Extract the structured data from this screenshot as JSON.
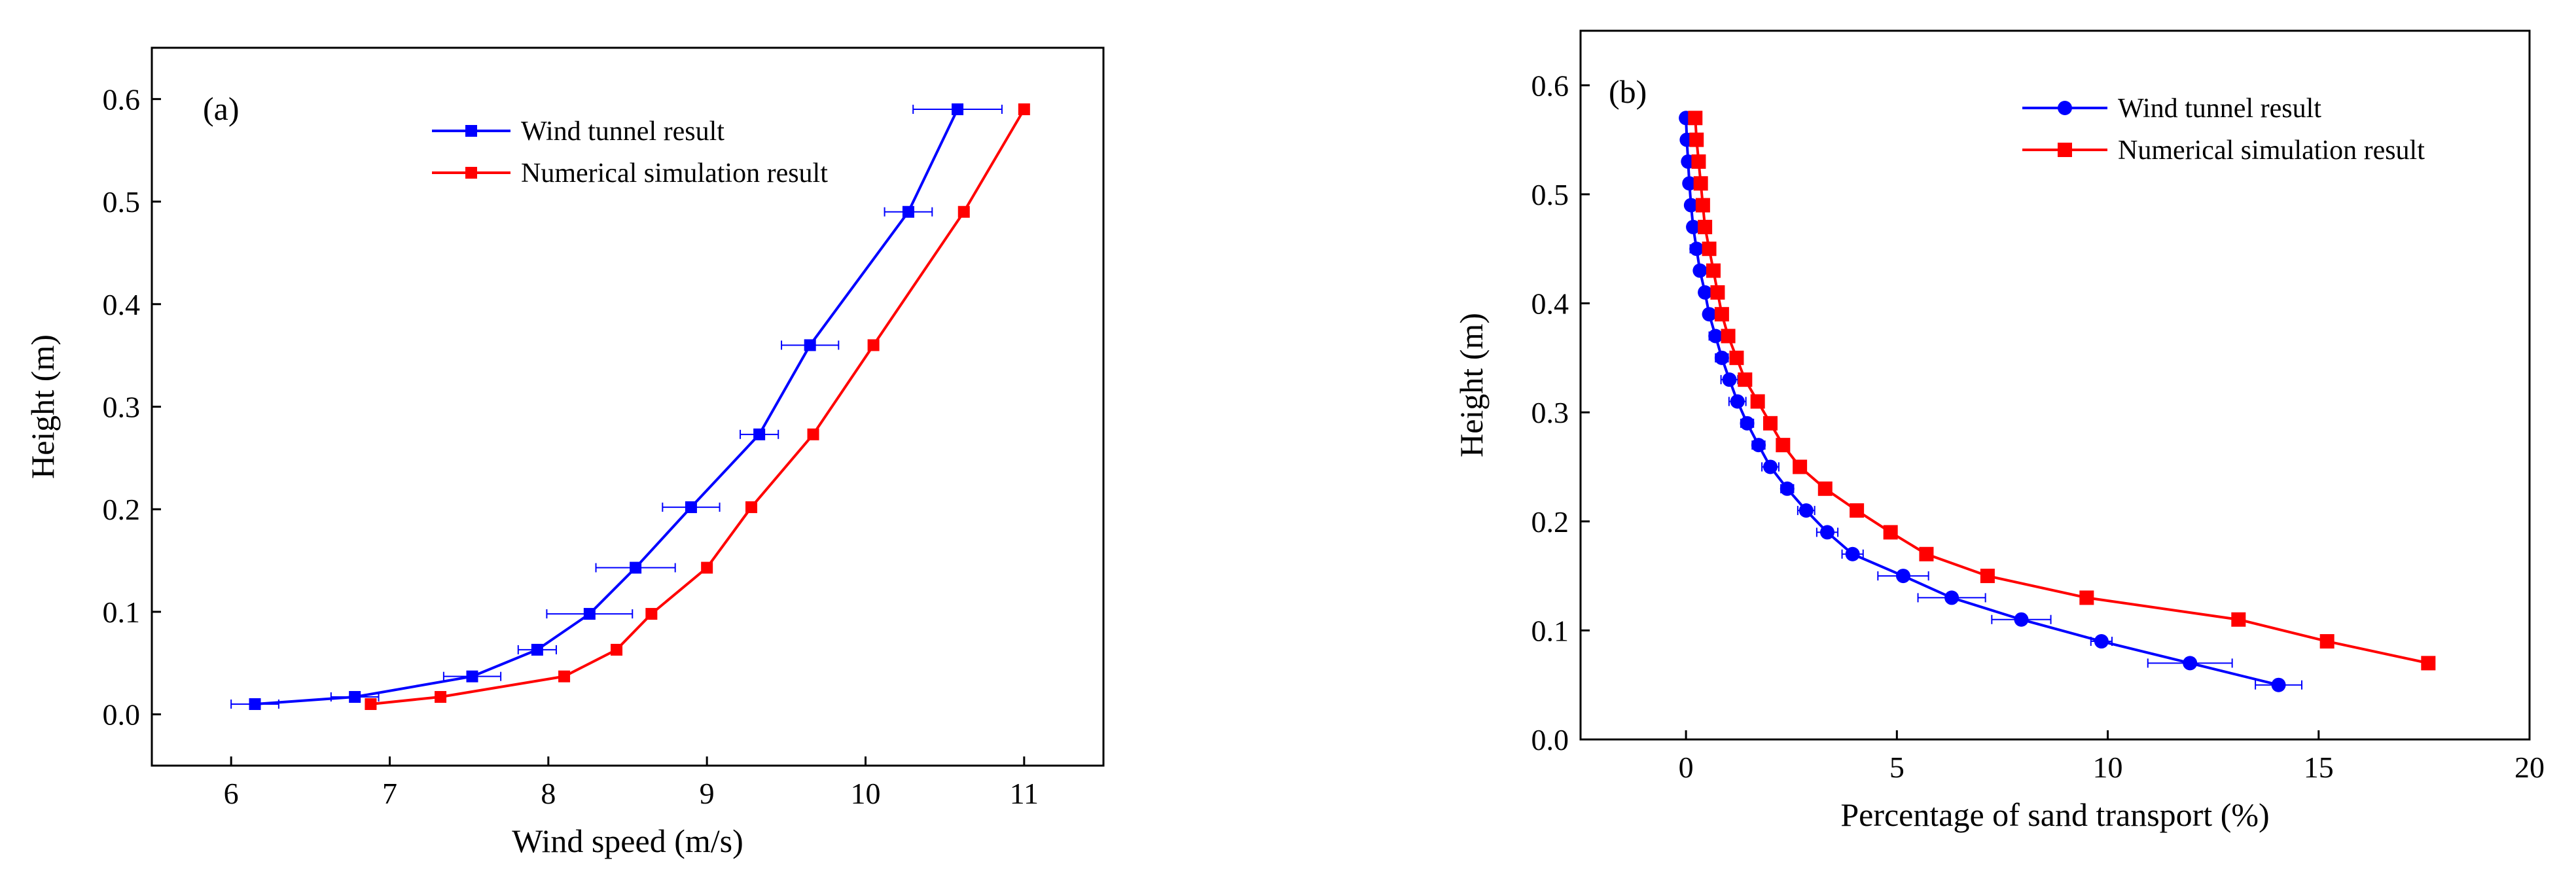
{
  "chart_data": [
    {
      "type": "line",
      "panel_label": "(a)",
      "xlabel": "Wind speed (m/s)",
      "ylabel": "Height (m)",
      "xlim": [
        5.5,
        11.5
      ],
      "ylim": [
        -0.05,
        0.65
      ],
      "xticks": [
        6,
        7,
        8,
        9,
        10,
        11
      ],
      "yticks": [
        0.0,
        0.1,
        0.2,
        0.3,
        0.4,
        0.5,
        0.6
      ],
      "xtick_labels": [
        "6",
        "7",
        "8",
        "9",
        "10",
        "11"
      ],
      "ytick_labels": [
        "0.0",
        "0.1",
        "0.2",
        "0.3",
        "0.4",
        "0.5",
        "0.6"
      ],
      "legend_position": "top-center",
      "series": [
        {
          "name": "Wind tunnel result",
          "color": "#0000ff",
          "marker": "square",
          "points": [
            {
              "x": 6.15,
              "y": 0.01,
              "err": 0.15
            },
            {
              "x": 6.78,
              "y": 0.017,
              "err": 0.15
            },
            {
              "x": 7.52,
              "y": 0.037,
              "err": 0.18
            },
            {
              "x": 7.93,
              "y": 0.063,
              "err": 0.12
            },
            {
              "x": 8.26,
              "y": 0.098,
              "err": 0.27
            },
            {
              "x": 8.55,
              "y": 0.143,
              "err": 0.25
            },
            {
              "x": 8.9,
              "y": 0.202,
              "err": 0.18
            },
            {
              "x": 9.33,
              "y": 0.273,
              "err": 0.12
            },
            {
              "x": 9.65,
              "y": 0.36,
              "err": 0.18
            },
            {
              "x": 10.27,
              "y": 0.49,
              "err": 0.15
            },
            {
              "x": 10.58,
              "y": 0.59,
              "err": 0.28
            }
          ]
        },
        {
          "name": "Numerical simulation result",
          "color": "#ff0000",
          "marker": "square",
          "points": [
            {
              "x": 6.88,
              "y": 0.01
            },
            {
              "x": 7.32,
              "y": 0.017
            },
            {
              "x": 8.1,
              "y": 0.037
            },
            {
              "x": 8.43,
              "y": 0.063
            },
            {
              "x": 8.65,
              "y": 0.098
            },
            {
              "x": 9.0,
              "y": 0.143
            },
            {
              "x": 9.28,
              "y": 0.202
            },
            {
              "x": 9.67,
              "y": 0.273
            },
            {
              "x": 10.05,
              "y": 0.36
            },
            {
              "x": 10.62,
              "y": 0.49
            },
            {
              "x": 11.0,
              "y": 0.59
            }
          ]
        }
      ]
    },
    {
      "type": "line",
      "panel_label": "(b)",
      "xlabel": "Percentage of sand transport (%)",
      "ylabel": "Height (m)",
      "xlim": [
        -2.5,
        20
      ],
      "ylim": [
        0.0,
        0.65
      ],
      "xticks": [
        0,
        5,
        10,
        15,
        20
      ],
      "yticks": [
        0.0,
        0.1,
        0.2,
        0.3,
        0.4,
        0.5,
        0.6
      ],
      "xtick_labels": [
        "0",
        "5",
        "10",
        "15",
        "20"
      ],
      "ytick_labels": [
        "0.0",
        "0.1",
        "0.2",
        "0.3",
        "0.4",
        "0.5",
        "0.6"
      ],
      "legend_position": "top-right",
      "series": [
        {
          "name": "Wind tunnel result",
          "color": "#0000ff",
          "marker": "circle",
          "points": [
            {
              "x": 0.0,
              "y": 0.57,
              "err": 0.1
            },
            {
              "x": 0.02,
              "y": 0.55,
              "err": 0.1
            },
            {
              "x": 0.05,
              "y": 0.53,
              "err": 0.1
            },
            {
              "x": 0.08,
              "y": 0.51,
              "err": 0.1
            },
            {
              "x": 0.12,
              "y": 0.49,
              "err": 0.1
            },
            {
              "x": 0.17,
              "y": 0.47,
              "err": 0.1
            },
            {
              "x": 0.25,
              "y": 0.45,
              "err": 0.15
            },
            {
              "x": 0.33,
              "y": 0.43,
              "err": 0.1
            },
            {
              "x": 0.45,
              "y": 0.41,
              "err": 0.1
            },
            {
              "x": 0.55,
              "y": 0.39,
              "err": 0.1
            },
            {
              "x": 0.7,
              "y": 0.37,
              "err": 0.15
            },
            {
              "x": 0.85,
              "y": 0.35,
              "err": 0.15
            },
            {
              "x": 1.03,
              "y": 0.33,
              "err": 0.2
            },
            {
              "x": 1.22,
              "y": 0.31,
              "err": 0.2
            },
            {
              "x": 1.45,
              "y": 0.29,
              "err": 0.15
            },
            {
              "x": 1.72,
              "y": 0.27,
              "err": 0.15
            },
            {
              "x": 2.0,
              "y": 0.25,
              "err": 0.2
            },
            {
              "x": 2.4,
              "y": 0.23,
              "err": 0.15
            },
            {
              "x": 2.85,
              "y": 0.21,
              "err": 0.2
            },
            {
              "x": 3.35,
              "y": 0.19,
              "err": 0.25
            },
            {
              "x": 3.95,
              "y": 0.17,
              "err": 0.25
            },
            {
              "x": 5.15,
              "y": 0.15,
              "err": 0.6
            },
            {
              "x": 6.3,
              "y": 0.13,
              "err": 0.8
            },
            {
              "x": 7.95,
              "y": 0.11,
              "err": 0.7
            },
            {
              "x": 9.85,
              "y": 0.09,
              "err": 0.25
            },
            {
              "x": 11.95,
              "y": 0.07,
              "err": 1.0
            },
            {
              "x": 14.05,
              "y": 0.05,
              "err": 0.55
            }
          ]
        },
        {
          "name": "Numerical simulation result",
          "color": "#ff0000",
          "marker": "square",
          "points": [
            {
              "x": 0.22,
              "y": 0.57
            },
            {
              "x": 0.25,
              "y": 0.55
            },
            {
              "x": 0.3,
              "y": 0.53
            },
            {
              "x": 0.35,
              "y": 0.51
            },
            {
              "x": 0.4,
              "y": 0.49
            },
            {
              "x": 0.45,
              "y": 0.47
            },
            {
              "x": 0.55,
              "y": 0.45
            },
            {
              "x": 0.65,
              "y": 0.43
            },
            {
              "x": 0.75,
              "y": 0.41
            },
            {
              "x": 0.85,
              "y": 0.39
            },
            {
              "x": 1.0,
              "y": 0.37
            },
            {
              "x": 1.2,
              "y": 0.35
            },
            {
              "x": 1.4,
              "y": 0.33
            },
            {
              "x": 1.7,
              "y": 0.31
            },
            {
              "x": 2.0,
              "y": 0.29
            },
            {
              "x": 2.3,
              "y": 0.27
            },
            {
              "x": 2.7,
              "y": 0.25
            },
            {
              "x": 3.3,
              "y": 0.23
            },
            {
              "x": 4.05,
              "y": 0.21
            },
            {
              "x": 4.85,
              "y": 0.19
            },
            {
              "x": 5.7,
              "y": 0.17
            },
            {
              "x": 7.15,
              "y": 0.15
            },
            {
              "x": 9.5,
              "y": 0.13
            },
            {
              "x": 13.1,
              "y": 0.11
            },
            {
              "x": 15.2,
              "y": 0.09
            },
            {
              "x": 17.6,
              "y": 0.07
            }
          ]
        }
      ]
    }
  ]
}
